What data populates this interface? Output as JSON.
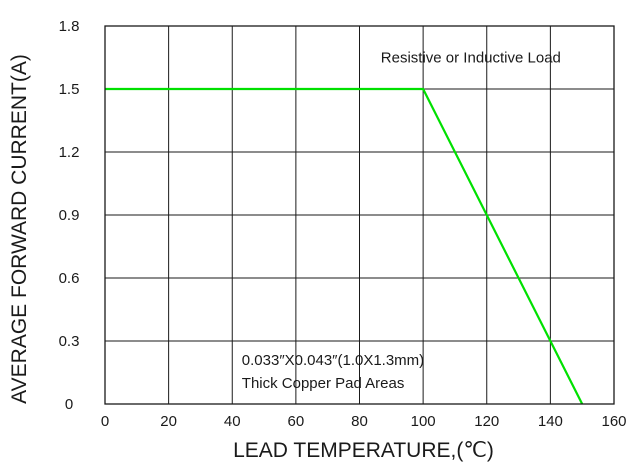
{
  "chart_data": {
    "type": "line",
    "title": "",
    "xlabel": "LEAD TEMPERATURE,(℃)",
    "ylabel": "AVERAGE FORWARD CURRENT(A)",
    "xlim": [
      0,
      160
    ],
    "ylim": [
      0,
      1.8
    ],
    "x_ticks": [
      "0",
      "20",
      "40",
      "60",
      "80",
      "100",
      "120",
      "140",
      "160"
    ],
    "y_ticks": [
      "0",
      "0.3",
      "0.6",
      "0.9",
      "1.2",
      "1.5",
      "1.8"
    ],
    "grid": true,
    "series": [
      {
        "color": "#00e000",
        "x": [
          0,
          100,
          150
        ],
        "y": [
          1.5,
          1.5,
          0
        ]
      }
    ],
    "annotations": [
      {
        "text": "Resistive or Inductive Load",
        "x": 115,
        "y": 1.65
      },
      {
        "text": "0.033″X0.043″(1.0X1.3mm)",
        "x": 43,
        "y": 0.21
      },
      {
        "text": "Thick Copper Pad Areas",
        "x": 43,
        "y": 0.1
      }
    ]
  }
}
